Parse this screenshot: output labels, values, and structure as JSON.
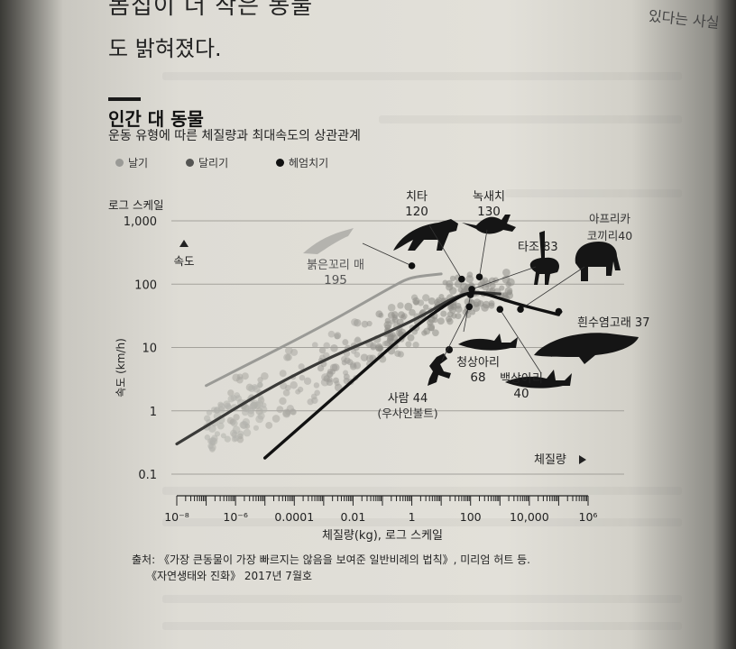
{
  "page": {
    "text_top_line": "몸집이 더 작은 동물",
    "text_second_line": "도 밝혀졌다.",
    "corner_text": "있다는 사실"
  },
  "figure": {
    "title": "인간 대 동물",
    "subtitle": "운동 유형에 따른 체질량과 최대속도의 상관관계",
    "legend": [
      {
        "label": "날기",
        "color": "#9a9a96"
      },
      {
        "label": "달리기",
        "color": "#555553"
      },
      {
        "label": "헤엄치기",
        "color": "#111111"
      }
    ],
    "source_line1": "출처: 《가장 큰동물이 가장 빠르지는 않음을 보여준 일반비례의 법칙》, 미리엄 허트 등.",
    "source_line2": "《자연생태와 진화》 2017년 7월호"
  },
  "chart_data": {
    "type": "scatter",
    "x_scale": "log",
    "y_scale": "log",
    "xlim": [
      1e-08,
      1000000.0
    ],
    "ylim": [
      0.1,
      1000
    ],
    "y_axis_caption": "로그 스케일",
    "y_axis_arrow_label": "속도",
    "ylabel": "속도 (km/h)",
    "x_axis_arrow_label": "체질량",
    "xlabel": "체질량(kg), 로그 스케일",
    "x_ticks": [
      {
        "value": 1e-08,
        "label": "10⁻⁸"
      },
      {
        "value": 1e-06,
        "label": "10⁻⁶"
      },
      {
        "value": 0.0001,
        "label": "0.0001"
      },
      {
        "value": 0.01,
        "label": "0.01"
      },
      {
        "value": 1,
        "label": "1"
      },
      {
        "value": 100,
        "label": "100"
      },
      {
        "value": 10000,
        "label": "10,000"
      },
      {
        "value": 1000000.0,
        "label": "10⁶"
      }
    ],
    "y_ticks": [
      {
        "value": 0.1,
        "label": "0.1"
      },
      {
        "value": 1,
        "label": "1"
      },
      {
        "value": 10,
        "label": "10"
      },
      {
        "value": 100,
        "label": "100"
      },
      {
        "value": 1000,
        "label": "1,000"
      }
    ],
    "grid": true,
    "series": [
      {
        "name": "날기",
        "color": "#9a9a96",
        "curve": [
          [
            1e-07,
            2.5
          ],
          [
            0.001,
            22
          ],
          [
            0.3,
            100
          ],
          [
            1,
            130
          ],
          [
            10,
            145
          ]
        ]
      },
      {
        "name": "달리기",
        "color": "#3a3a38",
        "curve": [
          [
            1e-08,
            0.3
          ],
          [
            0.0001,
            4
          ],
          [
            1,
            25
          ],
          [
            30,
            65
          ],
          [
            150,
            75
          ],
          [
            1000,
            70
          ]
        ]
      },
      {
        "name": "헤엄치기",
        "color": "#111111",
        "curve": [
          [
            1e-05,
            0.18
          ],
          [
            0.01,
            3
          ],
          [
            1,
            20
          ],
          [
            30,
            60
          ],
          [
            150,
            80
          ],
          [
            3000,
            50
          ],
          [
            100000,
            33
          ]
        ]
      }
    ],
    "annotations": [
      {
        "name": "붉은꼬리 매",
        "value": "195",
        "x": 1,
        "y": 195
      },
      {
        "name": "치타",
        "value": "120",
        "x": 50,
        "y": 120
      },
      {
        "name": "녹새치",
        "value": "130",
        "x": 200,
        "y": 130
      },
      {
        "name": "타조",
        "value": "83",
        "x": 110,
        "y": 83
      },
      {
        "name": "아프리카 코끼리",
        "value": "40",
        "x": 5000,
        "y": 40
      },
      {
        "name": "흰수염고래",
        "value": "37",
        "x": 100000,
        "y": 37
      },
      {
        "name": "청상아리",
        "value": "68",
        "x": 100,
        "y": 68
      },
      {
        "name": "백상아리",
        "value": "40",
        "x": 1000,
        "y": 40
      },
      {
        "name": "사람",
        "value": "44",
        "sublabel": "(우사인볼트)",
        "x": 90,
        "y": 44
      }
    ]
  }
}
